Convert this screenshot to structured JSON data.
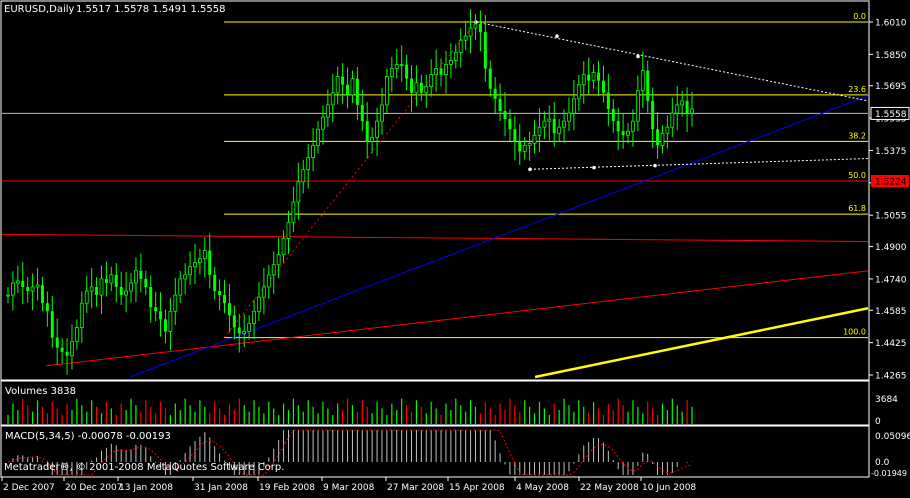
{
  "main_header": {
    "symbol_label": "EURUSD,Daily",
    "ohlc_values": "1.5517 1.5578 1.5491 1.5558"
  },
  "volume_header": "Volumes 3838",
  "macd_header": "MACD(5,34,5) -0.00078 -0.00193",
  "copyright": "Metatrader®, © 2001-2008 MetaQuotes Software Corp.",
  "colors": {
    "background": "#000000",
    "axis": "#ffffff",
    "candle": "#00ff00",
    "fibo": "#ffff00",
    "channel_line": "#0000ff",
    "red_line": "#ff0000",
    "dotted_trend": "#ffffff",
    "macd_signal": "#ff0000",
    "volume_bar_up": "#00ff00",
    "volume_bar_down": "#ff0000",
    "price_badge_bg": "#ff0000"
  },
  "chart_data": {
    "type": "line",
    "subtype": "candlestick-approximation",
    "title": "EURUSD,Daily",
    "x_labels": [
      "2 Dec 2007",
      "20 Dec 2007",
      "13 Jan 2008",
      "31 Jan 2008",
      "19 Feb 2008",
      "9 Mar 2008",
      "27 Mar 2008",
      "15 Apr 2008",
      "4 May 2008",
      "22 May 2008",
      "10 Jun 2008"
    ],
    "y_ticks": [
      "1.6010",
      "1.5850",
      "1.5695",
      "1.5535",
      "1.5375",
      "1.5215",
      "1.5055",
      "1.4900",
      "1.4740",
      "1.4585",
      "1.4425",
      "1.4265"
    ],
    "ylim": [
      1.4265,
      1.601
    ],
    "current_price_label": "1.5558",
    "red_line_label": "1.5224",
    "fibonacci_levels": [
      {
        "label": "0.0",
        "price": 1.601
      },
      {
        "label": "23.6",
        "price": 1.565
      },
      {
        "label": "38.2",
        "price": 1.542
      },
      {
        "label": "50.0",
        "price": 1.5224
      },
      {
        "label": "61.8",
        "price": 1.506
      },
      {
        "label": "100.0",
        "price": 1.445
      }
    ],
    "close_series": [
      1.466,
      1.472,
      1.473,
      1.47,
      1.468,
      1.47,
      1.471,
      1.462,
      1.458,
      1.445,
      1.44,
      1.438,
      1.436,
      1.443,
      1.45,
      1.462,
      1.468,
      1.47,
      1.466,
      1.474,
      1.472,
      1.476,
      1.47,
      1.466,
      1.468,
      1.472,
      1.478,
      1.474,
      1.47,
      1.46,
      1.458,
      1.454,
      1.448,
      1.458,
      1.466,
      1.474,
      1.476,
      1.48,
      1.482,
      1.484,
      1.488,
      1.476,
      1.468,
      1.466,
      1.462,
      1.456,
      1.45,
      1.447,
      1.448,
      1.452,
      1.458,
      1.465,
      1.47,
      1.476,
      1.481,
      1.486,
      1.494,
      1.502,
      1.512,
      1.522,
      1.528,
      1.534,
      1.54,
      1.548,
      1.554,
      1.56,
      1.566,
      1.574,
      1.57,
      1.565,
      1.573,
      1.56,
      1.552,
      1.542,
      1.544,
      1.552,
      1.56,
      1.574,
      1.578,
      1.58,
      1.58,
      1.573,
      1.566,
      1.571,
      1.566,
      1.569,
      1.575,
      1.578,
      1.575,
      1.58,
      1.582,
      1.586,
      1.592,
      1.594,
      1.598,
      1.6,
      1.596,
      1.578,
      1.568,
      1.563,
      1.557,
      1.553,
      1.548,
      1.542,
      1.537,
      1.54,
      1.541,
      1.545,
      1.549,
      1.552,
      1.553,
      1.546,
      1.549,
      1.552,
      1.556,
      1.563,
      1.57,
      1.575,
      1.572,
      1.576,
      1.572,
      1.566,
      1.558,
      1.552,
      1.547,
      1.545,
      1.547,
      1.552,
      1.567,
      1.577,
      1.562,
      1.548,
      1.54,
      1.546,
      1.549,
      1.556,
      1.56,
      1.562,
      1.556,
      1.558
    ],
    "series": [
      {
        "values": [
          1.466,
          1.472,
          1.473,
          1.47,
          1.468,
          1.47,
          1.471,
          1.462,
          1.458,
          1.445,
          1.44,
          1.438,
          1.436,
          1.443,
          1.45,
          1.462,
          1.468,
          1.47,
          1.466,
          1.474,
          1.472,
          1.476,
          1.47,
          1.466,
          1.468,
          1.472,
          1.478,
          1.474,
          1.47,
          1.46,
          1.458,
          1.454,
          1.448,
          1.458,
          1.466,
          1.474,
          1.476,
          1.48,
          1.482,
          1.484,
          1.488,
          1.476,
          1.468,
          1.466,
          1.462,
          1.456,
          1.45,
          1.447,
          1.448,
          1.452,
          1.458,
          1.465,
          1.47,
          1.476,
          1.481,
          1.486,
          1.494,
          1.502,
          1.512,
          1.522,
          1.528,
          1.534,
          1.54,
          1.548,
          1.554,
          1.56,
          1.566,
          1.574,
          1.57,
          1.565,
          1.573,
          1.56,
          1.552,
          1.542,
          1.544,
          1.552,
          1.56,
          1.574,
          1.578,
          1.58,
          1.58,
          1.573,
          1.566,
          1.571,
          1.566,
          1.569,
          1.575,
          1.578,
          1.575,
          1.58,
          1.582,
          1.586,
          1.592,
          1.594,
          1.598,
          1.6,
          1.596,
          1.578,
          1.568,
          1.563,
          1.557,
          1.553,
          1.548,
          1.542,
          1.537,
          1.54,
          1.541,
          1.545,
          1.549,
          1.552,
          1.553,
          1.546,
          1.549,
          1.552,
          1.556,
          1.563,
          1.57,
          1.575,
          1.572,
          1.576,
          1.572,
          1.566,
          1.558,
          1.552,
          1.547,
          1.545,
          1.547,
          1.552,
          1.567,
          1.577,
          1.562,
          1.548,
          1.54,
          1.546,
          1.549,
          1.556,
          1.56,
          1.562,
          1.556,
          1.558
        ]
      }
    ],
    "volume_axis_labels": [
      "3684",
      "0"
    ],
    "macd_axis_labels": [
      "0.05096",
      "0.0",
      "-0.01949"
    ],
    "grid": false,
    "legend": "none"
  }
}
